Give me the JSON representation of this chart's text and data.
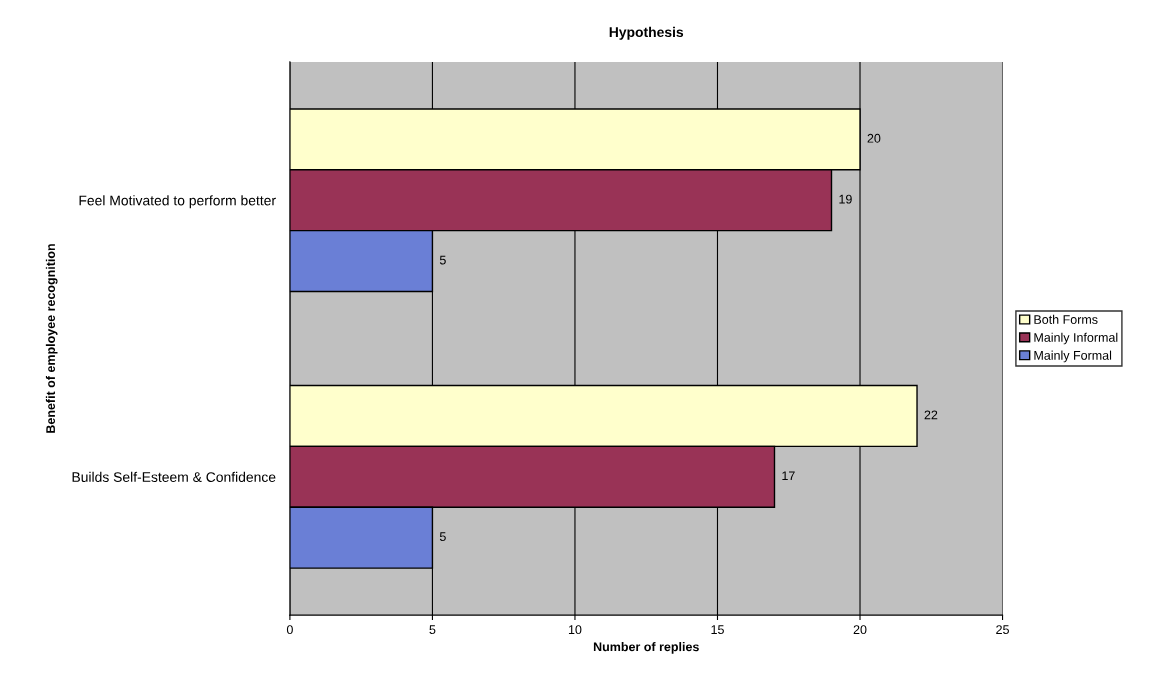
{
  "chart_data": {
    "type": "bar",
    "orientation": "horizontal",
    "title": "Hypothesis",
    "xlabel": "Number of replies",
    "ylabel": "Benefit of employee recognition",
    "categories": [
      "Feel Motivated to perform better",
      "Builds Self-Esteem & Confidence"
    ],
    "series": [
      {
        "name": "Both Forms",
        "color": "#ffffcc",
        "values": [
          20,
          22
        ]
      },
      {
        "name": "Mainly Informal",
        "color": "#993356",
        "values": [
          19,
          17
        ]
      },
      {
        "name": "Mainly Formal",
        "color": "#6a7fd6",
        "values": [
          5,
          5
        ]
      }
    ],
    "xlim": [
      0,
      25
    ],
    "xticks": [
      0,
      5,
      10,
      15,
      20,
      25
    ],
    "grid": "x",
    "legend": "right",
    "data_labels": true
  }
}
